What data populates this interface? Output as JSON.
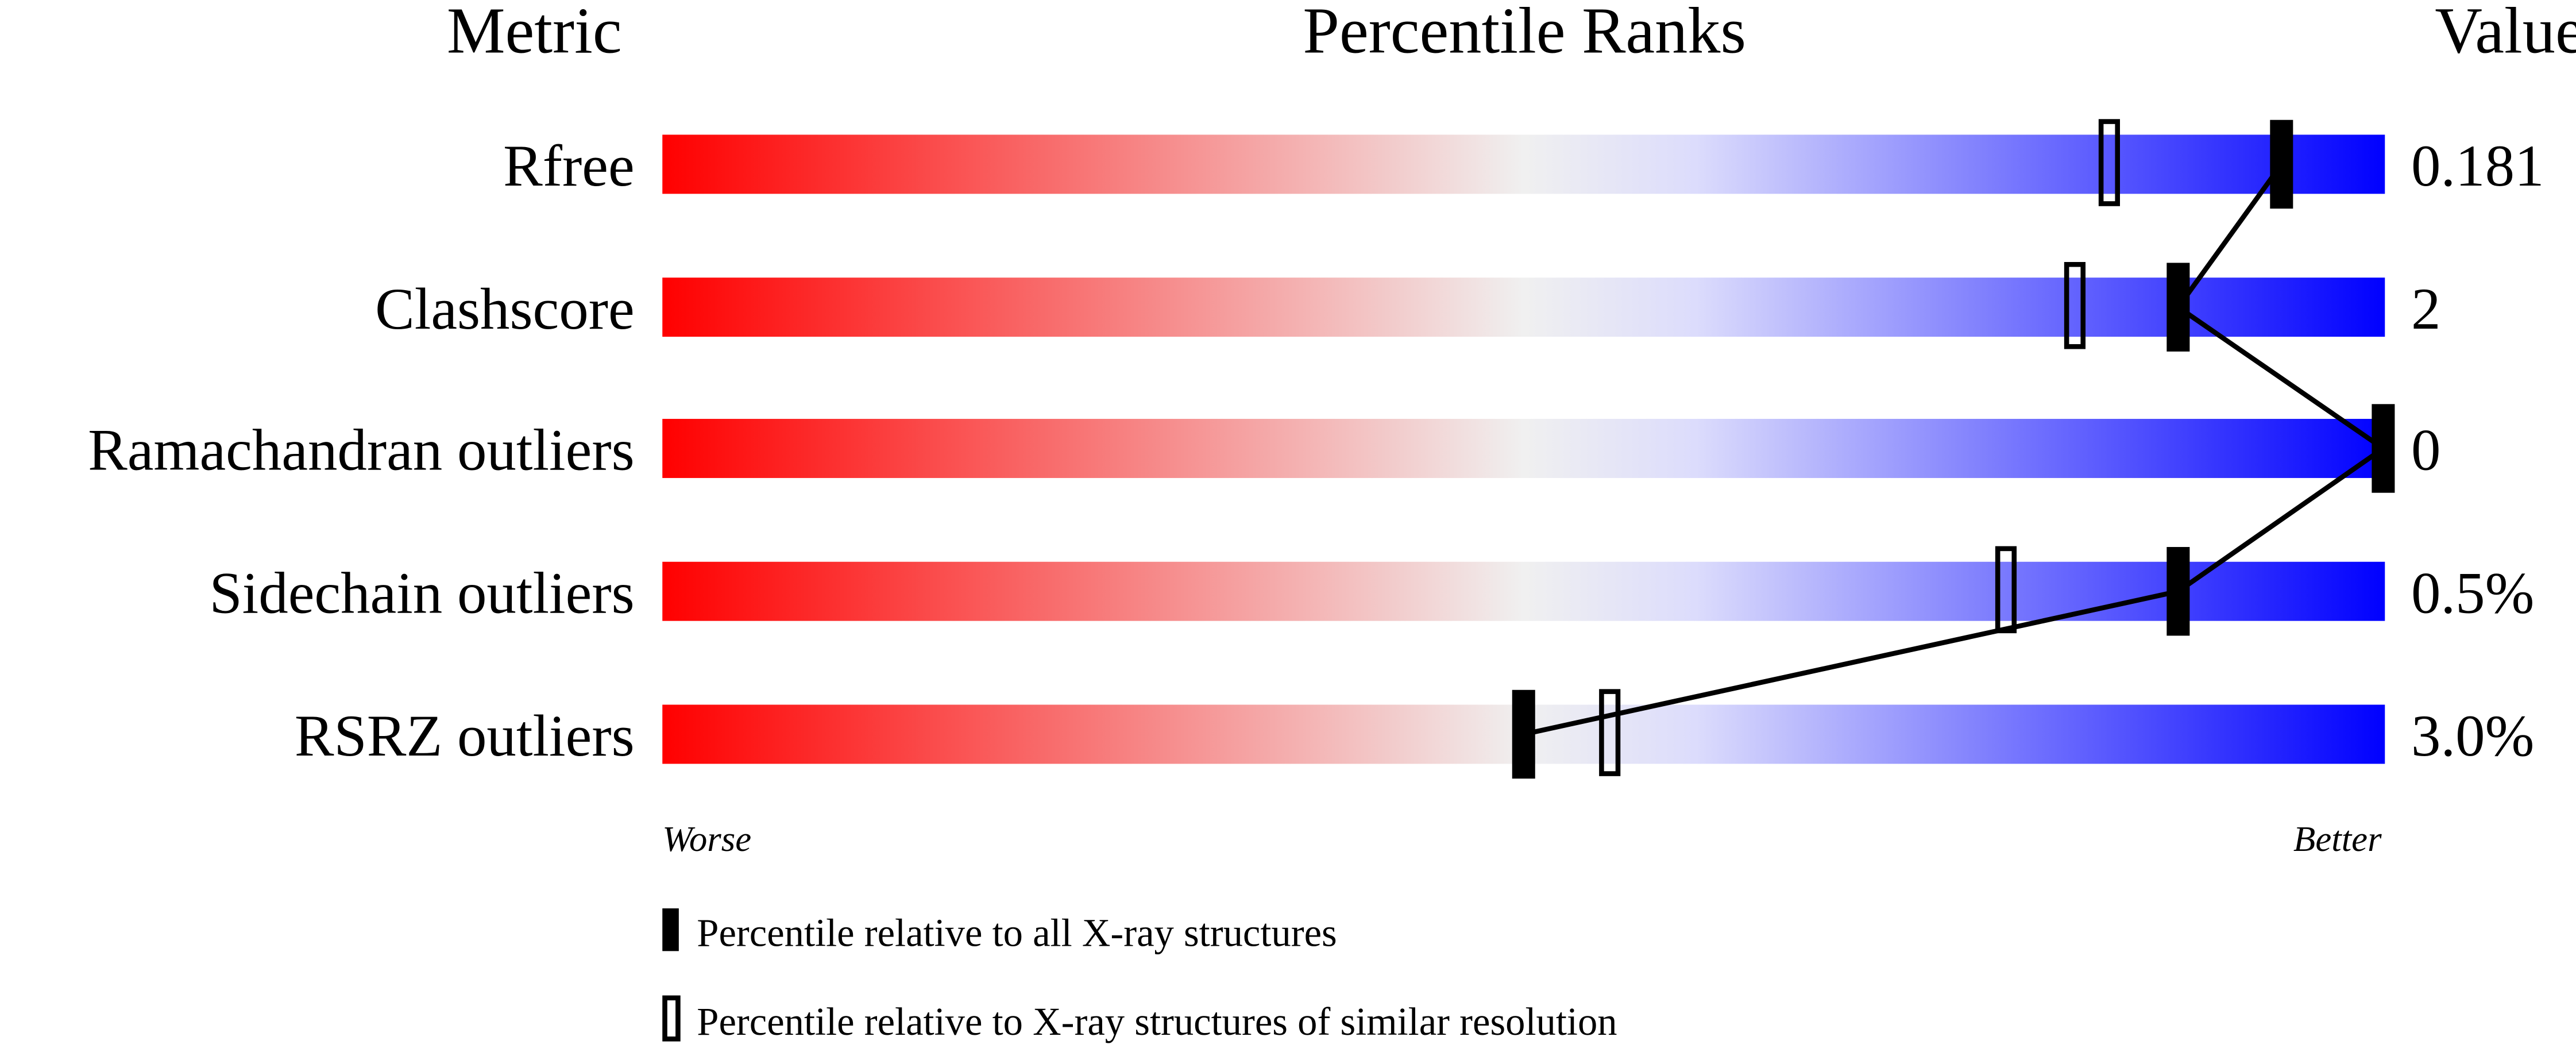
{
  "chart_data": {
    "type": "bar",
    "title": "Percentile Ranks",
    "headers": {
      "metric": "Metric",
      "ranks": "Percentile Ranks",
      "value": "Value"
    },
    "xlim": [
      0,
      100
    ],
    "axis_labels": {
      "left": "Worse",
      "right": "Better"
    },
    "gradient_colors": [
      "#ff0000",
      "#f0f0f0",
      "#0000ff"
    ],
    "metrics": [
      {
        "name": "Rfree",
        "value": "0.181",
        "percentile_all": 94,
        "percentile_similar": 84
      },
      {
        "name": "Clashscore",
        "value": "2",
        "percentile_all": 88,
        "percentile_similar": 82
      },
      {
        "name": "Ramachandran outliers",
        "value": "0",
        "percentile_all": 100,
        "percentile_similar": null
      },
      {
        "name": "Sidechain outliers",
        "value": "0.5%",
        "percentile_all": 88,
        "percentile_similar": 78
      },
      {
        "name": "RSRZ outliers",
        "value": "3.0%",
        "percentile_all": 50,
        "percentile_similar": 55
      }
    ],
    "legend": {
      "all": "Percentile relative to all X-ray structures",
      "similar": "Percentile relative to X-ray structures of similar resolution"
    }
  }
}
